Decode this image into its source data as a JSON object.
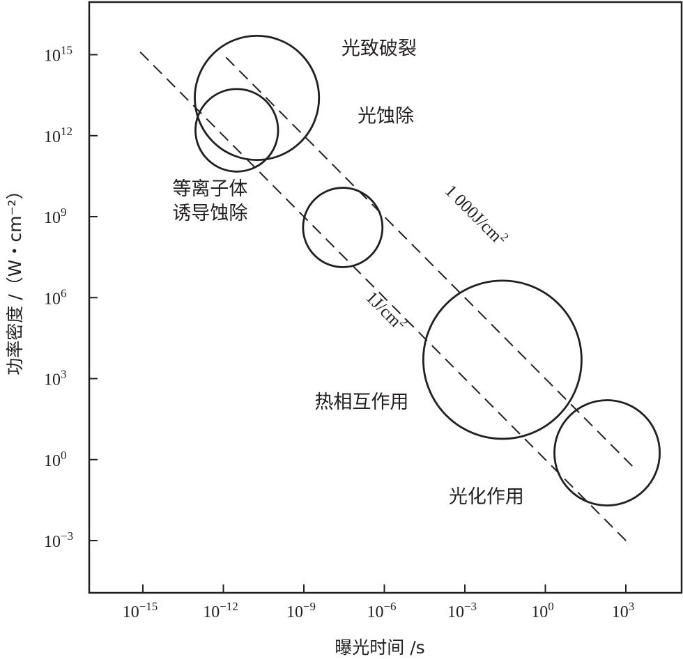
{
  "chart_data": {
    "type": "scatter",
    "xlabel": "曝光时间 /s",
    "ylabel": "功率密度 /（W・cm⁻²）",
    "xscale": "log",
    "yscale": "log",
    "xlim_exp": [
      -17,
      3.5
    ],
    "ylim_exp": [
      -4.5,
      17
    ],
    "x_ticks": [
      {
        "exp": -15,
        "base": "10",
        "sup": "−15"
      },
      {
        "exp": -12,
        "base": "10",
        "sup": "−12"
      },
      {
        "exp": -9,
        "base": "10",
        "sup": "−9"
      },
      {
        "exp": -6,
        "base": "10",
        "sup": "−6"
      },
      {
        "exp": -3,
        "base": "10",
        "sup": "−3"
      },
      {
        "exp": 0,
        "base": "10",
        "sup": "0"
      },
      {
        "exp": 3,
        "base": "10",
        "sup": "3"
      }
    ],
    "y_ticks": [
      {
        "exp": 15,
        "base": "10",
        "sup": "15"
      },
      {
        "exp": 12,
        "base": "10",
        "sup": "12"
      },
      {
        "exp": 9,
        "base": "10",
        "sup": "9"
      },
      {
        "exp": 6,
        "base": "10",
        "sup": "6"
      },
      {
        "exp": 3,
        "base": "10",
        "sup": "3"
      },
      {
        "exp": 0,
        "base": "10",
        "sup": "0"
      },
      {
        "exp": -3,
        "base": "10",
        "sup": "−3"
      }
    ],
    "regions": [
      {
        "label": "光致破裂",
        "center_log": [
          -10.75,
          13.4
        ],
        "radius_log": 2.3,
        "label_log": [
          -7.6,
          15.0
        ]
      },
      {
        "label": "光蚀除",
        "center_log": [
          -11.5,
          12.2
        ],
        "radius_log": 1.53,
        "label_log": [
          -7.0,
          12.5
        ]
      },
      {
        "label": "等离子体",
        "center_log": null,
        "radius_log": null,
        "label_log": [
          -13.9,
          9.8
        ]
      },
      {
        "label": "诱导蚀除",
        "center_log": null,
        "radius_log": null,
        "label_log": [
          -13.9,
          8.9
        ]
      },
      {
        "label": "",
        "center_log": [
          -7.55,
          8.6
        ],
        "radius_log": 1.47,
        "label_log": null
      },
      {
        "label": "热相互作用",
        "center_log": [
          -1.6,
          3.7
        ],
        "radius_log": 2.93,
        "label_log": [
          -8.6,
          1.9
        ]
      },
      {
        "label": "光化作用",
        "center_log": [
          2.3,
          0.25
        ],
        "radius_log": 1.95,
        "label_log": [
          -3.6,
          -1.6
        ]
      }
    ],
    "fluence_lines": [
      {
        "label_parts": [
          "1 000J/cm",
          "2"
        ],
        "fluence_exp": 3
      },
      {
        "label_parts": [
          "1J/cm",
          "2"
        ],
        "fluence_exp": 0
      }
    ]
  }
}
